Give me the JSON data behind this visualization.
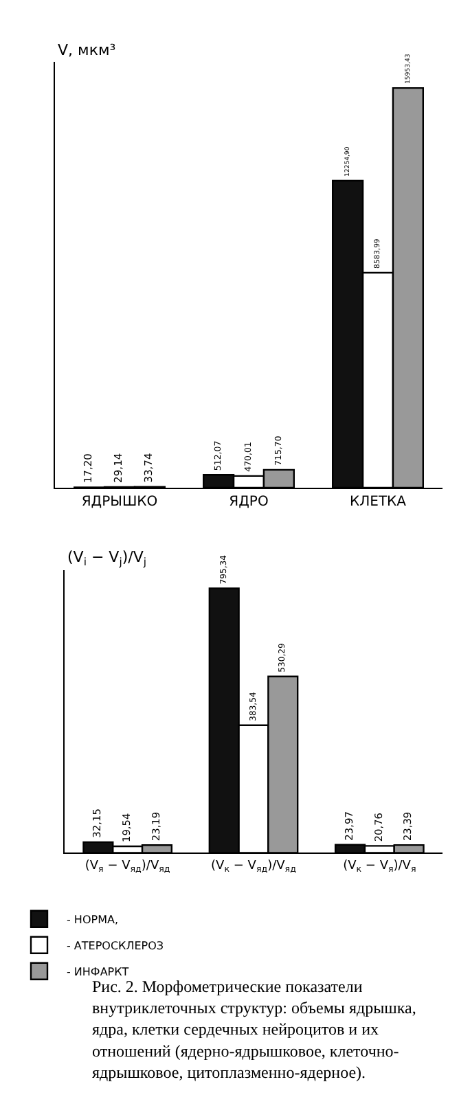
{
  "chart_data": [
    {
      "type": "bar",
      "ylabel": "V, мкм³",
      "categories": [
        "ЯДРЫШКО",
        "ЯДРО",
        "КЛЕТКА"
      ],
      "ylim": [
        0,
        17000
      ],
      "tick_labels": "x",
      "data_labels": true,
      "series": [
        {
          "color": "#111111",
          "values": [
            17.2,
            512.07,
            12254.9
          ],
          "value_labels": [
            "17,20",
            "512,07",
            "12254,90"
          ]
        },
        {
          "color": "#ffffff",
          "values": [
            29.14,
            470.01,
            8583.99
          ],
          "value_labels": [
            "29,14",
            "470,01",
            "8583,99"
          ]
        },
        {
          "color": "#999999",
          "values": [
            33.74,
            715.7,
            15953.43
          ],
          "value_labels": [
            "33,74",
            "715,70",
            "15953,43"
          ]
        }
      ]
    },
    {
      "type": "bar",
      "ylabel": "(V$_{i}$ − V$_{j}$)/V$_{j}$",
      "categories": [
        "(V$_{я}$ − V$_{яд}$)/V$_{яд}$",
        "(V$_{к}$ − V$_{яд}$)/V$_{яд}$",
        "(V$_{к}$ − V$_{я}$)/V$_{я}$"
      ],
      "ylim": [
        0,
        850
      ],
      "tick_labels": "x",
      "legend": "bottom",
      "data_labels": true,
      "series": [
        {
          "name": "- НОРМА,",
          "color": "#111111",
          "values": [
            32.15,
            795.34,
            23.97
          ],
          "value_labels": [
            "32,15",
            "795,34",
            "23,97"
          ]
        },
        {
          "name": "- АТЕРОСКЛЕРОЗ",
          "color": "#ffffff",
          "values": [
            19.54,
            383.54,
            20.76
          ],
          "value_labels": [
            "19,54",
            "383,54",
            "20,76"
          ]
        },
        {
          "name": "- ИНФАРКТ",
          "color": "#999999",
          "values": [
            23.19,
            530.29,
            23.39
          ],
          "value_labels": [
            "23,19",
            "530,29",
            "23,39"
          ]
        }
      ],
      "annotations": [
        "Рис. 2. Морфометрические показатели внутриклеточных структур: объемы ядрышка, ядра, клетки сердечных нейроцитов и их отношений (ядерно-ядрышковое, клеточно-ядрышковое, цитоплазменно-ядерное)."
      ]
    }
  ]
}
